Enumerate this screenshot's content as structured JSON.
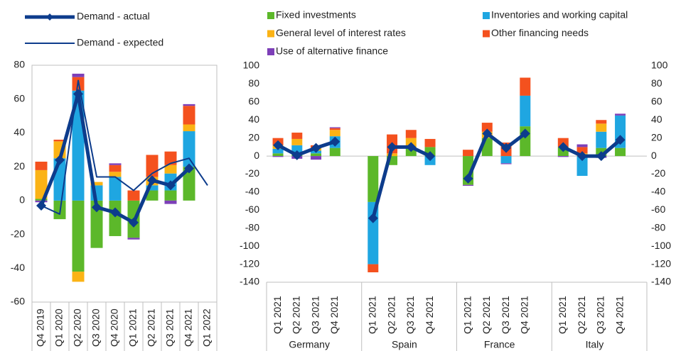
{
  "chart_data": [
    {
      "type": "bar",
      "categories": [
        "Q4 2019",
        "Q1 2020",
        "Q2 2020",
        "Q3 2020",
        "Q4 2020",
        "Q1 2021",
        "Q2 2021",
        "Q3 2021",
        "Q4 2021",
        "Q1 2022"
      ],
      "ylim": [
        -60,
        80
      ],
      "yticks": [
        -60,
        -40,
        -20,
        0,
        20,
        40,
        60,
        80
      ],
      "grid": false,
      "series": [
        {
          "name": "Fixed investments",
          "color": "#5cb82a",
          "values": [
            1,
            -11,
            -42,
            -28,
            -21,
            -22,
            6,
            6,
            20,
            null
          ]
        },
        {
          "name": "Inventories and working capital",
          "color": "#1fa6e1",
          "values": [
            0,
            25,
            65,
            9,
            14,
            0,
            3,
            10,
            21,
            null
          ]
        },
        {
          "name": "General level of interest rates",
          "color": "#fbb315",
          "values": [
            17,
            10,
            -6,
            2,
            3,
            0,
            5,
            5,
            4,
            null
          ]
        },
        {
          "name": "Other financing needs",
          "color": "#f4511e",
          "values": [
            5,
            1,
            8,
            0,
            4,
            6,
            13,
            8,
            11,
            null
          ]
        },
        {
          "name": "Use of alternative finance",
          "color": "#7d3fb8",
          "values": [
            -1,
            0,
            2,
            0,
            1,
            -1,
            0,
            -2,
            1,
            null
          ]
        },
        {
          "name": "Demand - actual",
          "type": "line",
          "color": "#0d3c8c",
          "line_width": 5,
          "marker": "diamond",
          "values": [
            -3,
            24,
            63,
            -4,
            -7,
            -13,
            12,
            9,
            19,
            null
          ]
        },
        {
          "name": "Demand - expected",
          "type": "line",
          "color": "#0d3c8c",
          "line_width": 2,
          "values": [
            -3,
            -8,
            71,
            14,
            14,
            6,
            16,
            22,
            25,
            9
          ]
        }
      ]
    },
    {
      "type": "bar",
      "groups": [
        "Germany",
        "Spain",
        "France",
        "Italy"
      ],
      "categories": [
        "Q1 2021",
        "Q2 2021",
        "Q3 2021",
        "Q4 2021",
        "Q1 2021",
        "Q2 2021",
        "Q3 2021",
        "Q4 2021",
        "Q1 2021",
        "Q2 2021",
        "Q3 2021",
        "Q4 2021",
        "Q1 2021",
        "Q2 2021",
        "Q3 2021",
        "Q4 2021"
      ],
      "ylim": [
        -140,
        100
      ],
      "yticks": [
        -140,
        -120,
        -100,
        -80,
        -60,
        -40,
        -20,
        0,
        20,
        40,
        60,
        80,
        100
      ],
      "grid": false,
      "series": [
        {
          "color": "#5cb82a",
          "values": [
            3,
            3,
            3,
            9,
            -51,
            -10,
            10,
            10,
            -32,
            20,
            0,
            33,
            10,
            0,
            9,
            9
          ]
        },
        {
          "color": "#1fa6e1",
          "values": [
            5,
            9,
            3,
            13,
            -69,
            0,
            0,
            -10,
            0,
            0,
            -8,
            34,
            0,
            -22,
            18,
            36
          ]
        },
        {
          "color": "#fbb315",
          "values": [
            4,
            7,
            3,
            7,
            0,
            3,
            10,
            0,
            0,
            7,
            0,
            0,
            0,
            3,
            9,
            0
          ]
        },
        {
          "color": "#f4511e",
          "values": [
            8,
            7,
            3,
            2,
            -9,
            21,
            9,
            9,
            7,
            10,
            15,
            20,
            10,
            7,
            4,
            0
          ]
        },
        {
          "color": "#7d3fb8",
          "values": [
            -1,
            -3,
            -4,
            1,
            0,
            0,
            0,
            0,
            -1,
            0,
            -1,
            0,
            -1,
            3,
            -2,
            2
          ]
        },
        {
          "type": "line",
          "color": "#0d3c8c",
          "line_width": 5,
          "marker": "diamond",
          "values": [
            12,
            1,
            9,
            16,
            -69,
            10,
            10,
            0,
            -25,
            25,
            9,
            25,
            10,
            0,
            0,
            18
          ]
        }
      ]
    }
  ]
}
